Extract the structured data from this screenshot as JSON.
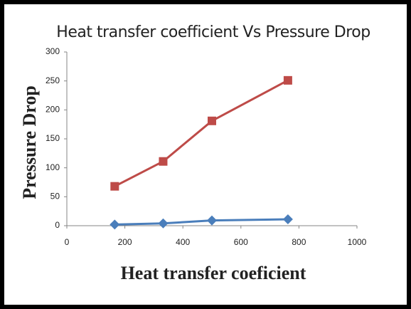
{
  "chart_data": {
    "type": "line",
    "title": "Heat transfer coefficient Vs Pressure Drop",
    "x_label": "Heat transfer coeficient",
    "y_label": "Pressure Drop",
    "x": [
      165,
      332,
      500,
      762
    ],
    "series": [
      {
        "color": "#4a7ebb",
        "marker": "diamond",
        "values": [
          2,
          4,
          9,
          11
        ]
      },
      {
        "color": "#be4b48",
        "marker": "square",
        "values": [
          68,
          111,
          181,
          251
        ]
      }
    ],
    "xlim": [
      0,
      1000
    ],
    "xticks": [
      0,
      200,
      400,
      600,
      800,
      1000
    ],
    "ylim": [
      0,
      300
    ],
    "yticks": [
      0,
      50,
      100,
      150,
      200,
      250,
      300
    ],
    "grid": false
  }
}
